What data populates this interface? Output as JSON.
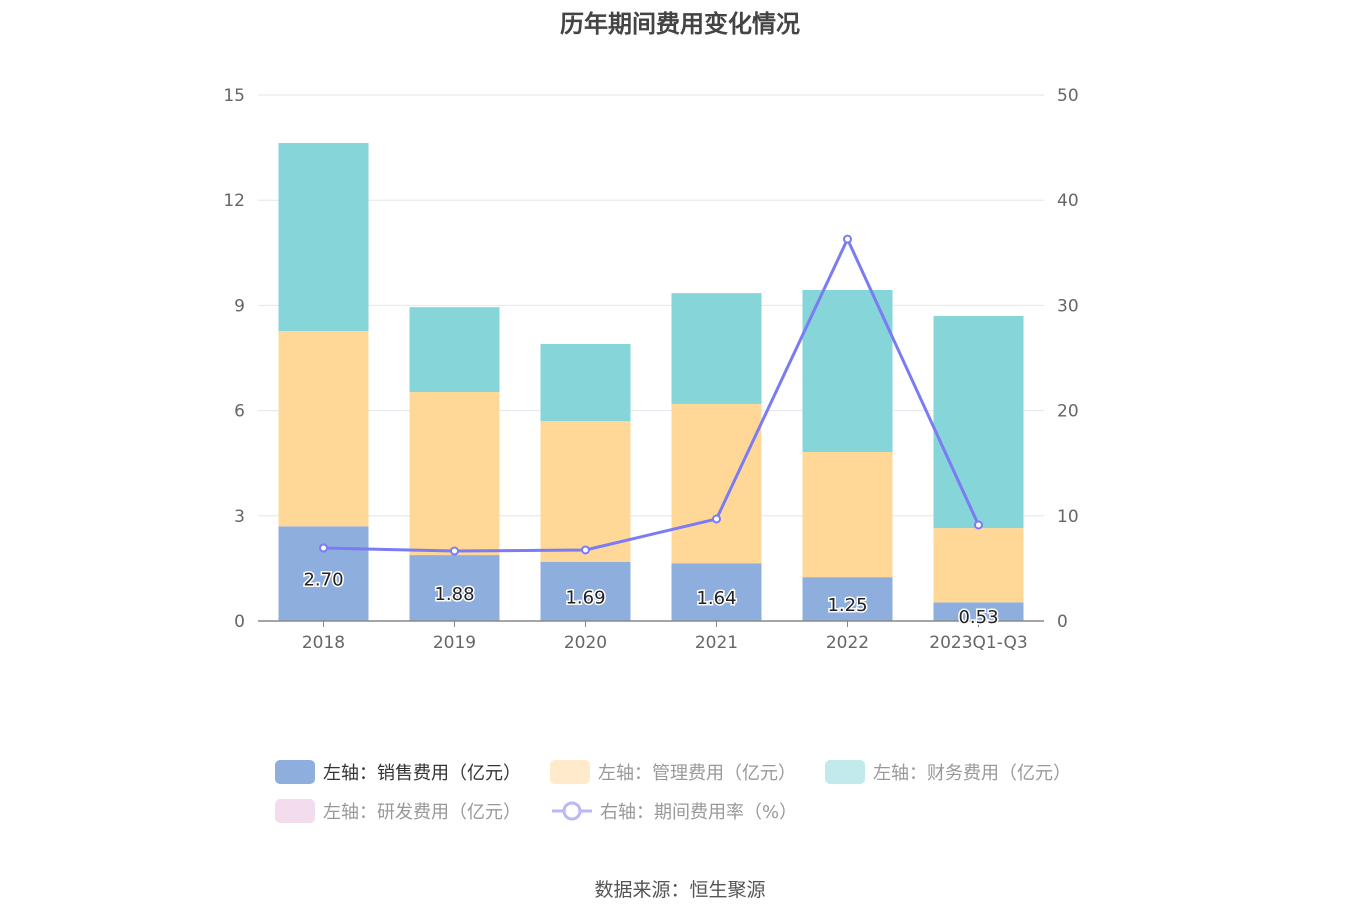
{
  "title": "历年期间费用变化情况",
  "source": "数据来源：恒生聚源",
  "chart_data": {
    "type": "bar",
    "stacked": true,
    "categories": [
      "2018",
      "2019",
      "2020",
      "2021",
      "2022",
      "2023Q1-Q3"
    ],
    "left_axis": {
      "ylim": [
        0,
        15
      ],
      "ticks": [
        "0",
        "3",
        "6",
        "9",
        "12",
        "15"
      ]
    },
    "right_axis": {
      "ylim": [
        0,
        50
      ],
      "ticks": [
        "0",
        "10",
        "20",
        "30",
        "40",
        "50"
      ]
    },
    "grid": true,
    "legend_position": "bottom",
    "series": [
      {
        "name": "左轴：销售费用（亿元）",
        "type": "bar",
        "axis": "left",
        "color": "#8eaedd",
        "values": [
          2.7,
          1.88,
          1.69,
          1.64,
          1.25,
          0.53
        ],
        "labels": [
          "2.70",
          "1.88",
          "1.69",
          "1.64",
          "1.25",
          "0.53"
        ],
        "legend_active": true
      },
      {
        "name": "左轴：管理费用（亿元）",
        "type": "bar",
        "axis": "left",
        "color": "#ffd897",
        "values": [
          5.57,
          4.65,
          4.01,
          4.55,
          3.57,
          2.12
        ],
        "legend_active": false
      },
      {
        "name": "左轴：财务费用（亿元）",
        "type": "bar",
        "axis": "left",
        "color": "#85d5d9",
        "values": [
          5.36,
          2.42,
          2.2,
          3.16,
          4.62,
          6.05
        ],
        "legend_active": false
      },
      {
        "name": "左轴：研发费用（亿元）",
        "type": "bar",
        "axis": "left",
        "color": "#f3dcec",
        "values": [
          0,
          0,
          0,
          0,
          0,
          0
        ],
        "legend_active": false
      },
      {
        "name": "右轴：期间费用率（%）",
        "type": "line",
        "axis": "right",
        "color": "#7b7bf3",
        "values": [
          6.94,
          6.65,
          6.75,
          9.7,
          36.3,
          9.13
        ],
        "legend_active": false
      }
    ]
  }
}
